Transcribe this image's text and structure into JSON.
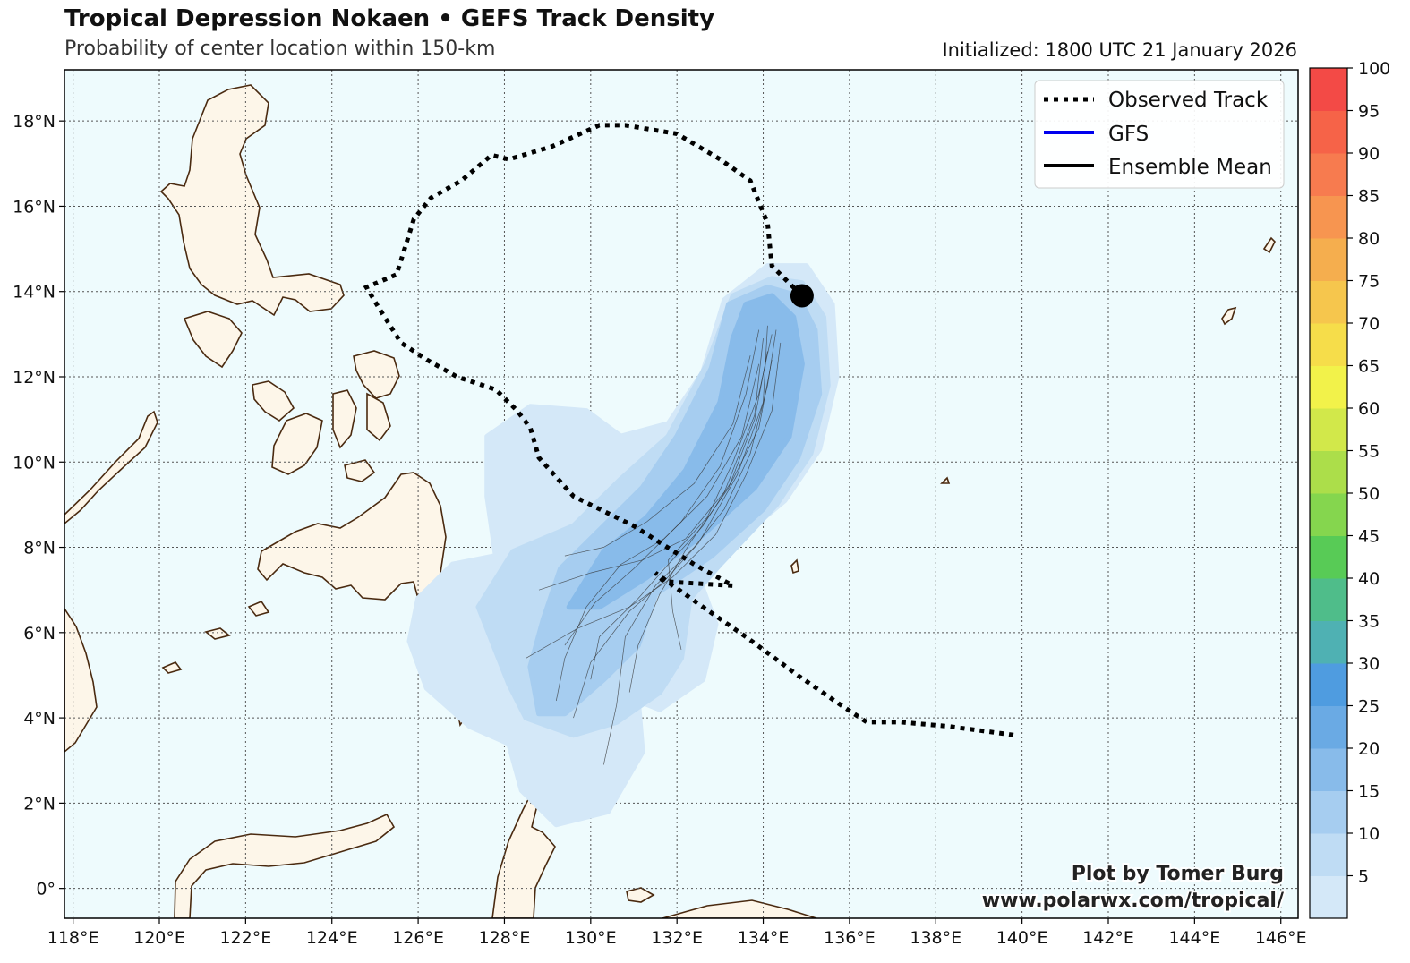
{
  "header": {
    "title": "Tropical Depression Nokaen • GEFS Track Density",
    "subtitle": "Probability of center location within 150-km",
    "initialized": "Initialized: 1800 UTC 21 January 2026"
  },
  "legend": {
    "items": [
      {
        "label": "Observed Track",
        "style": "dotted",
        "color": "#000000"
      },
      {
        "label": "GFS",
        "style": "solid",
        "color": "#0000ee"
      },
      {
        "label": "Ensemble Mean",
        "style": "solid",
        "color": "#000000"
      }
    ]
  },
  "credit": {
    "line1": "Plot by Tomer Burg",
    "line2": "www.polarwx.com/tropical/"
  },
  "colors": {
    "ocean": "#eefbfd",
    "land": "#fdf6e9",
    "coast": "#4a2a10",
    "grid": "#555555"
  },
  "chart_data": {
    "type": "heatmap",
    "description_units": "probability (%)",
    "x_axis": {
      "range": [
        117.8,
        146.4
      ],
      "ticks": [
        118,
        120,
        122,
        124,
        126,
        128,
        130,
        132,
        134,
        136,
        138,
        140,
        142,
        144,
        146
      ],
      "tick_labels": [
        "118°E",
        "120°E",
        "122°E",
        "124°E",
        "126°E",
        "128°E",
        "130°E",
        "132°E",
        "134°E",
        "136°E",
        "138°E",
        "140°E",
        "142°E",
        "144°E",
        "146°E"
      ]
    },
    "y_axis": {
      "range": [
        -0.7,
        19.2
      ],
      "ticks": [
        0,
        2,
        4,
        6,
        8,
        10,
        12,
        14,
        16,
        18
      ],
      "tick_labels": [
        "0°",
        "2°N",
        "4°N",
        "6°N",
        "8°N",
        "10°N",
        "12°N",
        "14°N",
        "16°N",
        "18°N"
      ]
    },
    "grid": true,
    "legend_position": "top-right",
    "colorbar": {
      "levels": [
        0,
        5,
        10,
        15,
        20,
        25,
        30,
        35,
        40,
        45,
        50,
        55,
        60,
        65,
        70,
        75,
        80,
        85,
        90,
        95,
        100
      ],
      "tick_labels": [
        "5",
        "10",
        "15",
        "20",
        "25",
        "30",
        "35",
        "40",
        "45",
        "50",
        "55",
        "60",
        "65",
        "70",
        "75",
        "80",
        "85",
        "90",
        "95",
        "100"
      ],
      "colors": [
        "#d4e8f8",
        "#bfdcf4",
        "#a6cdf0",
        "#88bbea",
        "#6aaae4",
        "#4f9ce0",
        "#4fb1b3",
        "#4fbd8a",
        "#58cb56",
        "#85d64e",
        "#acde4a",
        "#d2e84a",
        "#f2f24a",
        "#f6dd4a",
        "#f6c64d",
        "#f5ae4e",
        "#f79550",
        "#f77b4f",
        "#f66348",
        "#f34a46"
      ]
    },
    "observed_track": [
      [
        139.8,
        3.6
      ],
      [
        138.3,
        3.8
      ],
      [
        137.2,
        3.9
      ],
      [
        136.4,
        3.9
      ],
      [
        135.8,
        4.3
      ],
      [
        134.8,
        5.0
      ],
      [
        133.6,
        5.9
      ],
      [
        132.6,
        6.6
      ],
      [
        131.5,
        7.4
      ],
      [
        131.7,
        7.2
      ],
      [
        133.3,
        7.1
      ],
      [
        132.4,
        7.6
      ],
      [
        131.0,
        8.5
      ],
      [
        129.6,
        9.2
      ],
      [
        128.8,
        10.1
      ],
      [
        128.6,
        10.8
      ],
      [
        128.3,
        11.2
      ],
      [
        127.8,
        11.7
      ],
      [
        126.9,
        12.0
      ],
      [
        126.2,
        12.4
      ],
      [
        125.6,
        12.8
      ],
      [
        125.1,
        13.6
      ],
      [
        124.8,
        14.1
      ],
      [
        125.5,
        14.4
      ],
      [
        125.9,
        15.7
      ],
      [
        126.3,
        16.2
      ],
      [
        127.0,
        16.6
      ],
      [
        127.7,
        17.2
      ],
      [
        128.1,
        17.1
      ],
      [
        129.1,
        17.4
      ],
      [
        130.2,
        17.9
      ],
      [
        130.8,
        17.9
      ],
      [
        132.0,
        17.7
      ],
      [
        133.0,
        17.1
      ],
      [
        133.7,
        16.6
      ],
      [
        134.1,
        15.6
      ],
      [
        134.2,
        14.6
      ],
      [
        134.7,
        14.1
      ],
      [
        134.9,
        13.9
      ]
    ],
    "current_position": [
      134.9,
      13.9
    ],
    "density": {
      "5": [
        [
          126.0,
          6.8
        ],
        [
          126.8,
          7.6
        ],
        [
          127.8,
          7.8
        ],
        [
          127.6,
          9.2
        ],
        [
          127.6,
          10.6
        ],
        [
          128.6,
          11.3
        ],
        [
          129.9,
          11.2
        ],
        [
          130.7,
          10.6
        ],
        [
          131.8,
          10.9
        ],
        [
          132.6,
          12.1
        ],
        [
          133.1,
          13.8
        ],
        [
          134.1,
          14.6
        ],
        [
          135.0,
          14.6
        ],
        [
          135.6,
          13.7
        ],
        [
          135.7,
          12.0
        ],
        [
          135.3,
          10.3
        ],
        [
          134.5,
          9.1
        ],
        [
          133.2,
          8.0
        ],
        [
          132.5,
          7.3
        ],
        [
          132.9,
          6.2
        ],
        [
          132.6,
          4.9
        ],
        [
          131.6,
          4.2
        ],
        [
          131.1,
          4.4
        ],
        [
          131.2,
          3.2
        ],
        [
          130.4,
          1.8
        ],
        [
          129.2,
          1.5
        ],
        [
          128.4,
          2.3
        ],
        [
          128.1,
          3.4
        ],
        [
          127.2,
          3.8
        ],
        [
          126.2,
          4.7
        ],
        [
          125.8,
          5.8
        ]
      ],
      "10": [
        [
          127.4,
          6.6
        ],
        [
          128.2,
          7.9
        ],
        [
          129.6,
          8.5
        ],
        [
          130.7,
          9.6
        ],
        [
          131.8,
          10.6
        ],
        [
          132.7,
          12.3
        ],
        [
          133.3,
          13.9
        ],
        [
          134.2,
          14.3
        ],
        [
          134.9,
          14.2
        ],
        [
          135.4,
          13.4
        ],
        [
          135.5,
          11.8
        ],
        [
          135.1,
          10.2
        ],
        [
          134.3,
          9.0
        ],
        [
          133.0,
          7.6
        ],
        [
          132.3,
          6.8
        ],
        [
          132.1,
          5.4
        ],
        [
          131.6,
          4.6
        ],
        [
          130.6,
          3.9
        ],
        [
          129.6,
          3.6
        ],
        [
          128.5,
          4.0
        ],
        [
          128.1,
          4.8
        ]
      ],
      "15": [
        [
          128.6,
          5.2
        ],
        [
          128.9,
          6.3
        ],
        [
          129.3,
          7.5
        ],
        [
          130.2,
          8.4
        ],
        [
          131.2,
          9.4
        ],
        [
          132.0,
          10.6
        ],
        [
          132.8,
          12.2
        ],
        [
          133.2,
          13.7
        ],
        [
          134.1,
          14.1
        ],
        [
          134.8,
          13.9
        ],
        [
          135.2,
          13.1
        ],
        [
          135.3,
          11.6
        ],
        [
          134.8,
          10.1
        ],
        [
          134.0,
          8.9
        ],
        [
          132.8,
          7.8
        ],
        [
          131.5,
          6.9
        ],
        [
          131.1,
          5.7
        ],
        [
          130.3,
          4.9
        ],
        [
          129.4,
          4.1
        ],
        [
          128.8,
          4.1
        ]
      ],
      "20": [
        [
          129.5,
          6.6
        ],
        [
          130.3,
          7.9
        ],
        [
          131.3,
          8.7
        ],
        [
          132.2,
          9.8
        ],
        [
          133.0,
          11.4
        ],
        [
          133.3,
          12.9
        ],
        [
          133.6,
          13.7
        ],
        [
          134.2,
          13.9
        ],
        [
          134.7,
          13.4
        ],
        [
          134.9,
          12.3
        ],
        [
          134.6,
          10.6
        ],
        [
          133.8,
          9.4
        ],
        [
          132.6,
          8.3
        ],
        [
          131.3,
          7.3
        ],
        [
          130.2,
          6.6
        ]
      ]
    },
    "ensemble_members": [
      [
        [
          133.9,
          13.1
        ],
        [
          133.6,
          11.6
        ],
        [
          133.0,
          9.9
        ],
        [
          132.1,
          8.6
        ],
        [
          131.0,
          7.5
        ],
        [
          130.1,
          6.7
        ],
        [
          129.4,
          5.7
        ]
      ],
      [
        [
          134.1,
          13.2
        ],
        [
          134.0,
          11.4
        ],
        [
          133.4,
          9.7
        ],
        [
          132.5,
          8.1
        ],
        [
          131.7,
          7.2
        ],
        [
          130.9,
          6.5
        ],
        [
          130.0,
          5.3
        ],
        [
          129.6,
          4.0
        ]
      ],
      [
        [
          134.3,
          13.1
        ],
        [
          134.1,
          11.8
        ],
        [
          133.7,
          10.2
        ],
        [
          133.1,
          8.9
        ],
        [
          132.4,
          8.0
        ],
        [
          131.5,
          7.1
        ],
        [
          130.8,
          5.9
        ],
        [
          130.6,
          4.3
        ],
        [
          130.3,
          2.9
        ]
      ],
      [
        [
          134.0,
          12.9
        ],
        [
          133.8,
          11.1
        ],
        [
          133.1,
          9.3
        ],
        [
          132.2,
          8.2
        ],
        [
          131.2,
          7.7
        ],
        [
          130.0,
          7.4
        ],
        [
          128.8,
          7.0
        ]
      ],
      [
        [
          134.2,
          13.0
        ],
        [
          133.9,
          11.6
        ],
        [
          133.3,
          10.0
        ],
        [
          132.7,
          8.7
        ],
        [
          131.8,
          7.7
        ],
        [
          131.9,
          6.5
        ],
        [
          132.1,
          5.6
        ]
      ],
      [
        [
          133.7,
          12.5
        ],
        [
          133.3,
          10.9
        ],
        [
          132.4,
          9.5
        ],
        [
          131.3,
          8.6
        ],
        [
          130.3,
          8.0
        ],
        [
          129.4,
          7.8
        ]
      ],
      [
        [
          134.4,
          12.8
        ],
        [
          134.2,
          11.2
        ],
        [
          133.6,
          9.7
        ],
        [
          132.9,
          8.3
        ],
        [
          131.9,
          7.3
        ],
        [
          130.9,
          6.6
        ],
        [
          129.7,
          6.1
        ],
        [
          128.5,
          5.4
        ]
      ],
      [
        [
          134.1,
          12.6
        ],
        [
          133.8,
          11.0
        ],
        [
          133.2,
          9.4
        ],
        [
          132.3,
          8.1
        ],
        [
          131.6,
          6.9
        ],
        [
          131.1,
          5.7
        ],
        [
          130.9,
          4.6
        ]
      ],
      [
        [
          133.9,
          12.3
        ],
        [
          133.5,
          10.6
        ],
        [
          132.7,
          9.2
        ],
        [
          131.7,
          8.2
        ],
        [
          130.7,
          7.6
        ],
        [
          129.9,
          6.6
        ],
        [
          129.4,
          5.4
        ],
        [
          129.2,
          4.4
        ]
      ],
      [
        [
          134.2,
          12.4
        ],
        [
          133.9,
          10.8
        ],
        [
          133.3,
          9.6
        ],
        [
          132.6,
          8.5
        ],
        [
          131.8,
          7.6
        ],
        [
          131.1,
          6.8
        ],
        [
          130.2,
          5.9
        ],
        [
          130.0,
          4.9
        ]
      ]
    ]
  }
}
